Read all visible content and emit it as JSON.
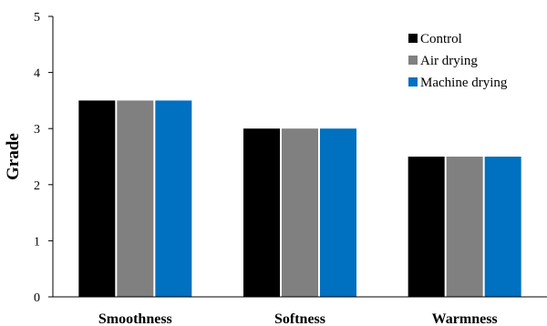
{
  "chart_data": {
    "type": "bar",
    "categories": [
      "Smoothness",
      "Softness",
      "Warmness"
    ],
    "series": [
      {
        "name": "Control",
        "values": [
          3.5,
          3.0,
          2.5
        ],
        "color": "#000000"
      },
      {
        "name": "Air drying",
        "values": [
          3.5,
          3.0,
          2.5
        ],
        "color": "#808080"
      },
      {
        "name": "Machine drying",
        "values": [
          3.5,
          3.0,
          2.5
        ],
        "color": "#0070C0"
      }
    ],
    "title": "",
    "xlabel": "",
    "ylabel": "Grade",
    "ylim": [
      0,
      5
    ],
    "yticks": [
      0,
      1,
      2,
      3,
      4,
      5
    ],
    "grid": false,
    "legend_position": "top-right"
  }
}
